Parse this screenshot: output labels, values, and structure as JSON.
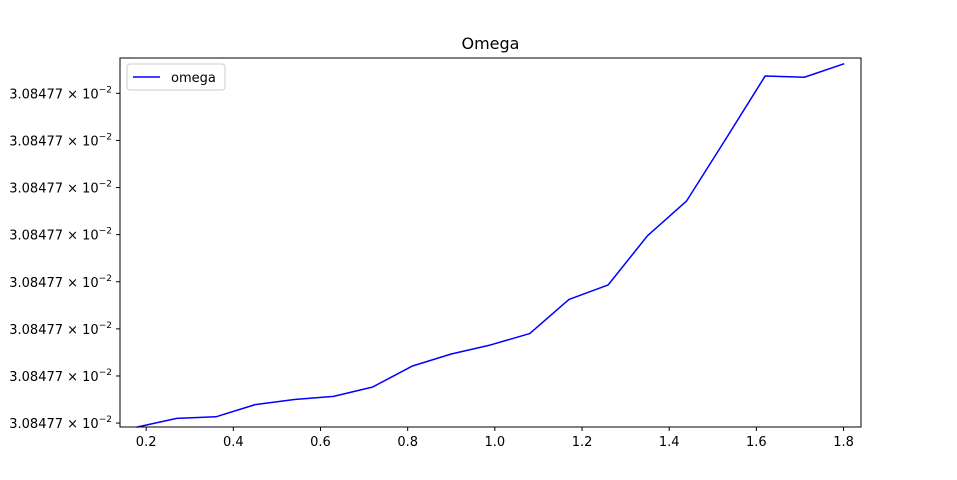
{
  "chart_data": {
    "type": "line",
    "title": "Omega",
    "xlabel": "",
    "ylabel": "",
    "xlim": [
      0.14,
      1.84
    ],
    "ylim": [
      0.04,
      0.98
    ],
    "xticks": [
      0.2,
      0.4,
      0.6,
      0.8,
      1.0,
      1.2,
      1.4,
      1.6,
      1.8
    ],
    "xtick_labels": [
      "0.2",
      "0.4",
      "0.6",
      "0.8",
      "1.0",
      "1.2",
      "1.4",
      "1.6",
      "1.8"
    ],
    "yticks": [
      0.05,
      0.17,
      0.29,
      0.41,
      0.53,
      0.65,
      0.77,
      0.89
    ],
    "ytick_label": {
      "mantissa": "3.08477",
      "times": "×",
      "base": "10",
      "exponent": "−2"
    },
    "legend": {
      "position": "top-left",
      "entries": [
        "omega"
      ]
    },
    "grid": false,
    "series": [
      {
        "name": "omega",
        "color": "#0000ff",
        "x": [
          0.18,
          0.27,
          0.36,
          0.45,
          0.54,
          0.63,
          0.72,
          0.81,
          0.9,
          0.99,
          1.08,
          1.17,
          1.26,
          1.35,
          1.44,
          1.53,
          1.62,
          1.71,
          1.8
        ],
        "y": [
          0.04,
          0.062,
          0.066,
          0.097,
          0.11,
          0.118,
          0.142,
          0.195,
          0.226,
          0.249,
          0.278,
          0.365,
          0.402,
          0.527,
          0.616,
          0.774,
          0.934,
          0.931,
          0.965
        ]
      }
    ]
  }
}
